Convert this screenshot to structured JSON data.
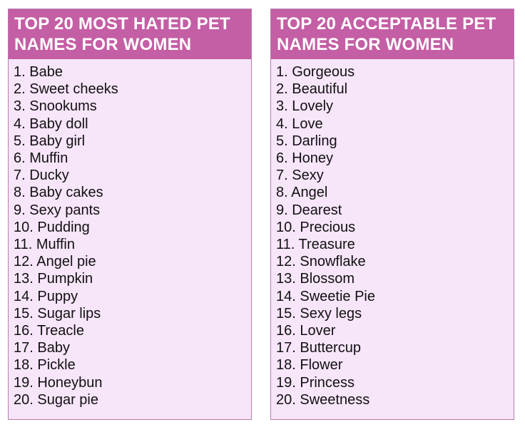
{
  "colors": {
    "header_bg": "#c45ea5",
    "body_bg": "#f7e5fa",
    "border": "#b47dae"
  },
  "left": {
    "title": "TOP 20 MOST HATED PET NAMES FOR WOMEN",
    "items": [
      "1. Babe",
      "2. Sweet cheeks",
      "3. Snookums",
      "4. Baby doll",
      "5. Baby girl",
      "6. Muffin",
      "7. Ducky",
      "8. Baby cakes",
      "9. Sexy pants",
      "10. Pudding",
      "11. Muffin",
      "12. Angel pie",
      "13. Pumpkin",
      "14. Puppy",
      "15. Sugar lips",
      "16. Treacle",
      "17. Baby",
      "18. Pickle",
      "19. Honeybun",
      "20. Sugar pie"
    ]
  },
  "right": {
    "title": "TOP 20 ACCEPTABLE PET NAMES FOR WOMEN",
    "items": [
      "1. Gorgeous",
      "2. Beautiful",
      "3. Lovely",
      "4. Love",
      "5. Darling",
      "6. Honey",
      "7. Sexy",
      "8. Angel",
      "9. Dearest",
      "10. Precious",
      "11. Treasure",
      "12. Snowflake",
      "13. Blossom",
      "14. Sweetie Pie",
      "15. Sexy legs",
      "16. Lover",
      "17. Buttercup",
      "18. Flower",
      "19. Princess",
      "20. Sweetness"
    ]
  }
}
